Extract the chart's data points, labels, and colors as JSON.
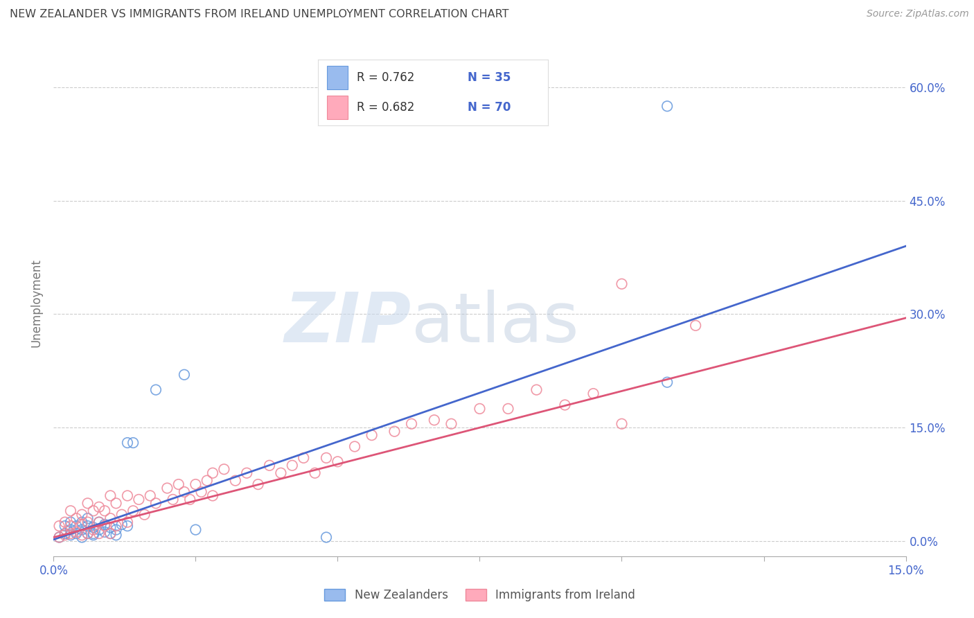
{
  "title": "NEW ZEALANDER VS IMMIGRANTS FROM IRELAND UNEMPLOYMENT CORRELATION CHART",
  "source": "Source: ZipAtlas.com",
  "ylabel": "Unemployment",
  "watermark_zip": "ZIP",
  "watermark_atlas": "atlas",
  "legend_r1": "R = 0.762",
  "legend_n1": "N = 35",
  "legend_r2": "R = 0.682",
  "legend_n2": "N = 70",
  "legend_label1": "New Zealanders",
  "legend_label2": "Immigrants from Ireland",
  "xmin": 0.0,
  "xmax": 0.15,
  "ymin": -0.02,
  "ymax": 0.65,
  "yticks": [
    0.0,
    0.15,
    0.3,
    0.45,
    0.6
  ],
  "ytick_labels": [
    "0.0%",
    "15.0%",
    "30.0%",
    "45.0%",
    "60.0%"
  ],
  "xticks": [
    0.0,
    0.025,
    0.05,
    0.075,
    0.1,
    0.125,
    0.15
  ],
  "xtick_labels": [
    "0.0%",
    "",
    "",
    "",
    "",
    "",
    "15.0%"
  ],
  "color_nz_fill": "none",
  "color_nz_edge": "#6699DD",
  "color_ire_fill": "none",
  "color_ire_edge": "#EE8899",
  "color_nz_line": "#4466CC",
  "color_ire_line": "#DD5577",
  "color_nz_legend": "#99BBEE",
  "color_ire_legend": "#FFAABB",
  "background": "#FFFFFF",
  "grid_color": "#CCCCCC",
  "title_color": "#444444",
  "axis_label_color": "#777777",
  "right_tick_color": "#4466CC",
  "nz_scatter_x": [
    0.001,
    0.002,
    0.002,
    0.003,
    0.003,
    0.003,
    0.004,
    0.004,
    0.005,
    0.005,
    0.005,
    0.006,
    0.006,
    0.006,
    0.007,
    0.007,
    0.007,
    0.008,
    0.008,
    0.009,
    0.009,
    0.01,
    0.01,
    0.011,
    0.011,
    0.012,
    0.013,
    0.013,
    0.014,
    0.018,
    0.023,
    0.025,
    0.048,
    0.108,
    0.108
  ],
  "nz_scatter_y": [
    0.005,
    0.01,
    0.02,
    0.008,
    0.015,
    0.025,
    0.01,
    0.02,
    0.005,
    0.015,
    0.025,
    0.01,
    0.02,
    0.03,
    0.008,
    0.018,
    0.01,
    0.015,
    0.025,
    0.012,
    0.022,
    0.01,
    0.018,
    0.008,
    0.015,
    0.022,
    0.02,
    0.13,
    0.13,
    0.2,
    0.22,
    0.015,
    0.005,
    0.21,
    0.575
  ],
  "ire_scatter_x": [
    0.001,
    0.001,
    0.002,
    0.002,
    0.003,
    0.003,
    0.003,
    0.004,
    0.004,
    0.005,
    0.005,
    0.005,
    0.006,
    0.006,
    0.006,
    0.007,
    0.007,
    0.008,
    0.008,
    0.008,
    0.009,
    0.009,
    0.01,
    0.01,
    0.01,
    0.011,
    0.011,
    0.012,
    0.013,
    0.013,
    0.014,
    0.015,
    0.016,
    0.017,
    0.018,
    0.02,
    0.021,
    0.022,
    0.023,
    0.024,
    0.025,
    0.026,
    0.027,
    0.028,
    0.028,
    0.03,
    0.032,
    0.034,
    0.036,
    0.038,
    0.04,
    0.042,
    0.044,
    0.046,
    0.048,
    0.05,
    0.053,
    0.056,
    0.06,
    0.063,
    0.067,
    0.07,
    0.075,
    0.08,
    0.085,
    0.09,
    0.095,
    0.1,
    0.1,
    0.113
  ],
  "ire_scatter_y": [
    0.005,
    0.02,
    0.008,
    0.025,
    0.01,
    0.02,
    0.04,
    0.012,
    0.03,
    0.008,
    0.022,
    0.035,
    0.01,
    0.025,
    0.05,
    0.015,
    0.04,
    0.01,
    0.025,
    0.045,
    0.02,
    0.04,
    0.01,
    0.03,
    0.06,
    0.02,
    0.05,
    0.035,
    0.025,
    0.06,
    0.04,
    0.055,
    0.035,
    0.06,
    0.05,
    0.07,
    0.055,
    0.075,
    0.065,
    0.055,
    0.075,
    0.065,
    0.08,
    0.06,
    0.09,
    0.095,
    0.08,
    0.09,
    0.075,
    0.1,
    0.09,
    0.1,
    0.11,
    0.09,
    0.11,
    0.105,
    0.125,
    0.14,
    0.145,
    0.155,
    0.16,
    0.155,
    0.175,
    0.175,
    0.2,
    0.18,
    0.195,
    0.155,
    0.34,
    0.285
  ],
  "nz_line_x": [
    0.0,
    0.15
  ],
  "nz_line_y": [
    0.002,
    0.39
  ],
  "ire_line_x": [
    0.0,
    0.15
  ],
  "ire_line_y": [
    0.005,
    0.295
  ]
}
